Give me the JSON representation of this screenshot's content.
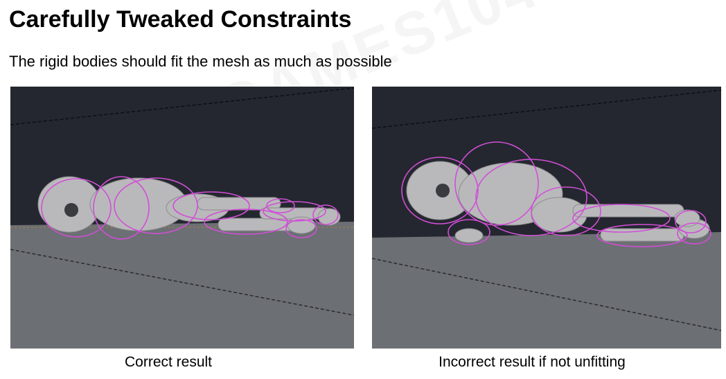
{
  "slide": {
    "title": "Carefully Tweaked Constraints",
    "subtitle": "The rigid bodies should fit the mesh as much as possible",
    "watermark": "GAMES104"
  },
  "figures": [
    {
      "caption": "Correct result",
      "icon": "ragdoll-robot-fitted"
    },
    {
      "caption": "Incorrect result if not unfitting",
      "icon": "ragdoll-robot-unfitted"
    }
  ],
  "colors": {
    "sky": "#24272f",
    "floor": "#6c6f73",
    "robot": "#b9b9bb",
    "physics_shapes": "#d14fd6"
  }
}
